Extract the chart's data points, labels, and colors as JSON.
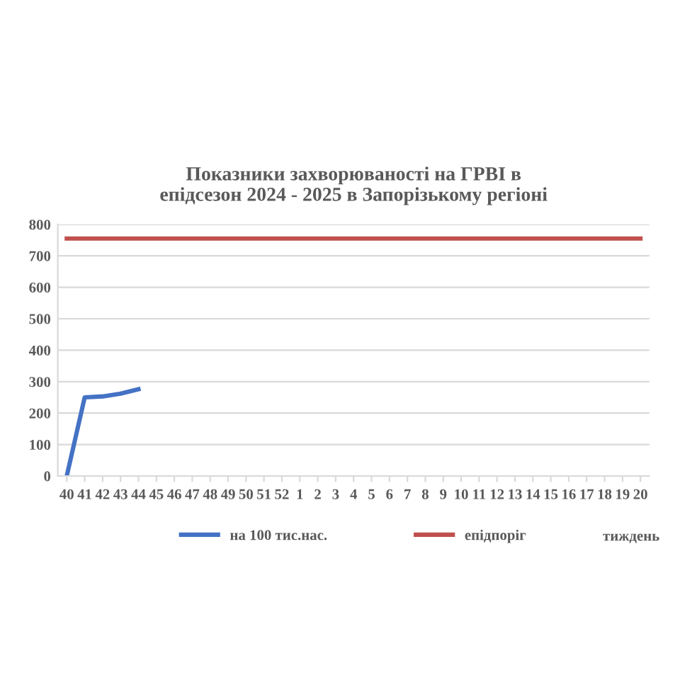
{
  "chart_data": {
    "type": "line",
    "title": "Показники захворюваності на ГРВІ в\nепідсезон 2024 - 2025 в Запорізькому регіоні",
    "xlabel": "тиждень",
    "categories": [
      "40",
      "41",
      "42",
      "43",
      "44",
      "45",
      "46",
      "47",
      "48",
      "49",
      "50",
      "51",
      "52",
      "1",
      "2",
      "3",
      "4",
      "5",
      "6",
      "7",
      "8",
      "9",
      "10",
      "11",
      "12",
      "13",
      "14",
      "15",
      "16",
      "17",
      "18",
      "19",
      "20"
    ],
    "series": [
      {
        "name": "на 100 тис.нас.",
        "color": "#4472c4",
        "values": [
          0,
          250,
          253,
          262,
          276,
          null,
          null,
          null,
          null,
          null,
          null,
          null,
          null,
          null,
          null,
          null,
          null,
          null,
          null,
          null,
          null,
          null,
          null,
          null,
          null,
          null,
          null,
          null,
          null,
          null,
          null,
          null,
          null
        ]
      },
      {
        "name": "епідпоріг",
        "color": "#c0504d",
        "values": [
          755,
          755,
          755,
          755,
          755,
          755,
          755,
          755,
          755,
          755,
          755,
          755,
          755,
          755,
          755,
          755,
          755,
          755,
          755,
          755,
          755,
          755,
          755,
          755,
          755,
          755,
          755,
          755,
          755,
          755,
          755,
          755,
          755
        ]
      }
    ],
    "ylim": [
      0,
      800
    ],
    "yticks": [
      0,
      100,
      200,
      300,
      400,
      500,
      600,
      700,
      800
    ],
    "grid": "y",
    "legend": "bottom",
    "marker": "none",
    "line_style": "solid"
  }
}
